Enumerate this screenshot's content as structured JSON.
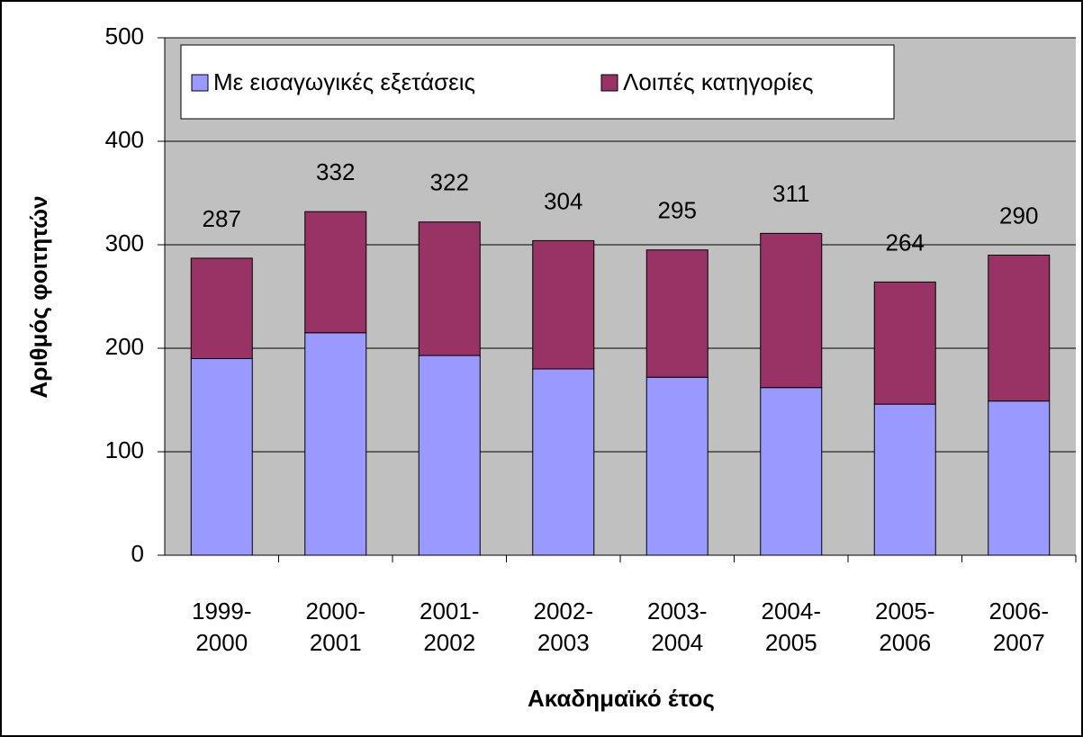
{
  "chart_data": {
    "type": "stacked_bar",
    "ylabel": "Αριθμός φοιτητών",
    "xlabel": "Ακαδημαϊκό έτος",
    "categories": [
      "1999-2000",
      "2000-2001",
      "2001-2002",
      "2002-2003",
      "2003-2004",
      "2004-2005",
      "2005-2006",
      "2006-2007"
    ],
    "series": [
      {
        "name": "Με εισαγωγικές εξετάσεις",
        "color": "#9999ff",
        "values": [
          190,
          215,
          193,
          180,
          172,
          162,
          146,
          149
        ]
      },
      {
        "name": "Λοιπές κατηγορίες",
        "color": "#993366",
        "values": [
          97,
          117,
          129,
          124,
          123,
          149,
          118,
          141
        ]
      }
    ],
    "totals": [
      287,
      332,
      322,
      304,
      295,
      311,
      264,
      290
    ],
    "ylim": [
      0,
      500
    ],
    "yticks": [
      0,
      100,
      200,
      300,
      400,
      500
    ],
    "grid": true
  }
}
